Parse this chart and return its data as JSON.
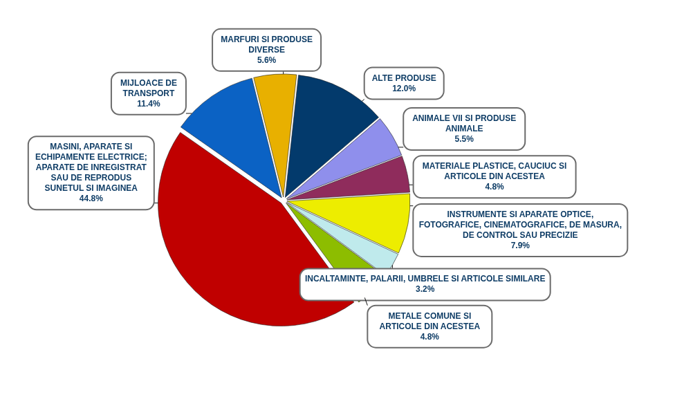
{
  "chart_data": {
    "type": "pie",
    "categories": [
      "MIJLOACE DE TRANSPORT",
      "MARFURI SI PRODUSE DIVERSE",
      "ALTE PRODUSE",
      "ANIMALE VII SI PRODUSE ANIMALE",
      "MATERIALE PLASTICE, CAUCIUC SI ARTICOLE DIN ACESTEA",
      "INSTRUMENTE SI APARATE OPTICE, FOTOGRAFICE, CINEMATOGRAFICE, DE MASURA, DE CONTROL SAU PRECIZIE",
      "INCALTAMINTE, PALARII, UMBRELE SI ARTICOLE SIMILARE",
      "METALE COMUNE SI ARTICOLE DIN ACESTEA",
      "MASINI, APARATE SI ECHIPAMENTE ELECTRICE; APARATE DE INREGISTRAT SAU DE REPRODUS SUNETUL SI IMAGINEA"
    ],
    "values": [
      11.4,
      5.6,
      12.0,
      5.5,
      4.8,
      7.9,
      3.2,
      4.8,
      44.8
    ],
    "value_labels": [
      "11.4%",
      "5.6%",
      "12.0%",
      "5.5%",
      "4.8%",
      "7.9%",
      "3.2%",
      "4.8%",
      "44.8%"
    ],
    "colors": [
      "#0b62c4",
      "#e8b000",
      "#033a6c",
      "#8f8fec",
      "#8f2c5c",
      "#eded00",
      "#bfeaec",
      "#8dbd00",
      "#c00000"
    ]
  }
}
